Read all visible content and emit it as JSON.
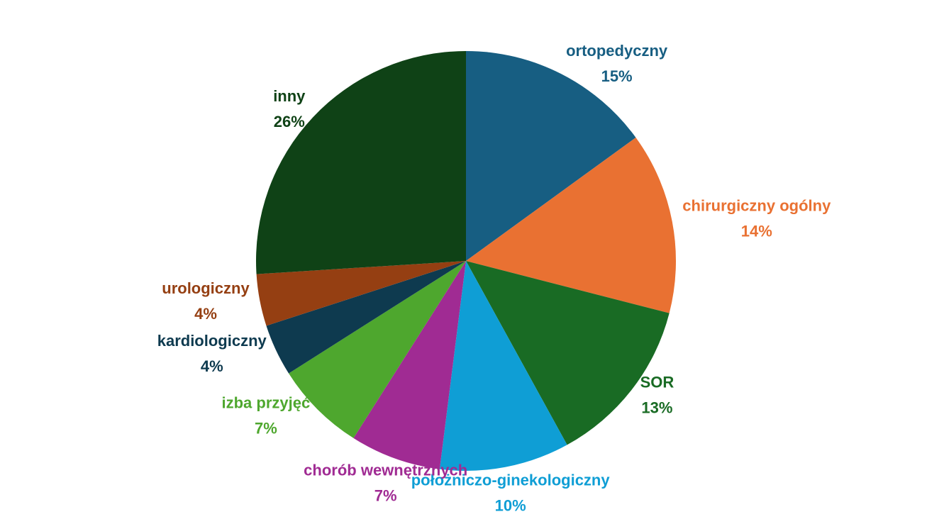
{
  "chart_data": {
    "type": "pie",
    "categories": [
      "ortopedyczny",
      "chirurgiczny ogólny",
      "SOR",
      "położniczo-ginekologiczny",
      "chorób wewnętrznych",
      "izba przyjęć",
      "kardiologiczny",
      "urologiczny",
      "inny"
    ],
    "values": [
      15,
      14,
      13,
      10,
      7,
      7,
      4,
      4,
      26
    ],
    "value_labels": [
      "15%",
      "14%",
      "13%",
      "10%",
      "7%",
      "7%",
      "4%",
      "4%",
      "26%"
    ],
    "colors": [
      "#175e82",
      "#e97132",
      "#196b24",
      "#0f9ed5",
      "#a02b93",
      "#4ea72e",
      "#0e3a4f",
      "#953f12",
      "#0f4216"
    ]
  }
}
